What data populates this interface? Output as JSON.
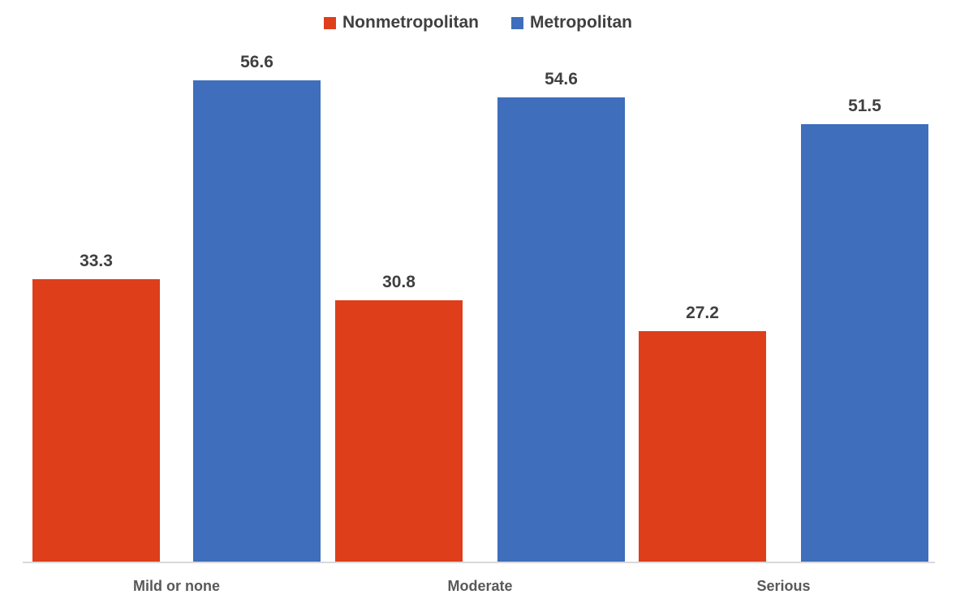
{
  "chart_data": {
    "type": "bar",
    "title": "",
    "xlabel": "",
    "ylabel": "",
    "categories": [
      "Mild or none",
      "Moderate",
      "Serious"
    ],
    "series": [
      {
        "name": "Nonmetropolitan",
        "color": "#de3e1a",
        "values": [
          33.3,
          30.8,
          27.2
        ]
      },
      {
        "name": "Metropolitan",
        "color": "#3e6ebc",
        "values": [
          56.6,
          54.6,
          51.5
        ]
      }
    ],
    "value_labels": true,
    "value_label_color": "#404040",
    "category_label_color": "#595959",
    "axis_line_color": "#d9d9d9",
    "ylim": [
      0,
      60
    ],
    "grid": false,
    "legend_position": "top"
  }
}
